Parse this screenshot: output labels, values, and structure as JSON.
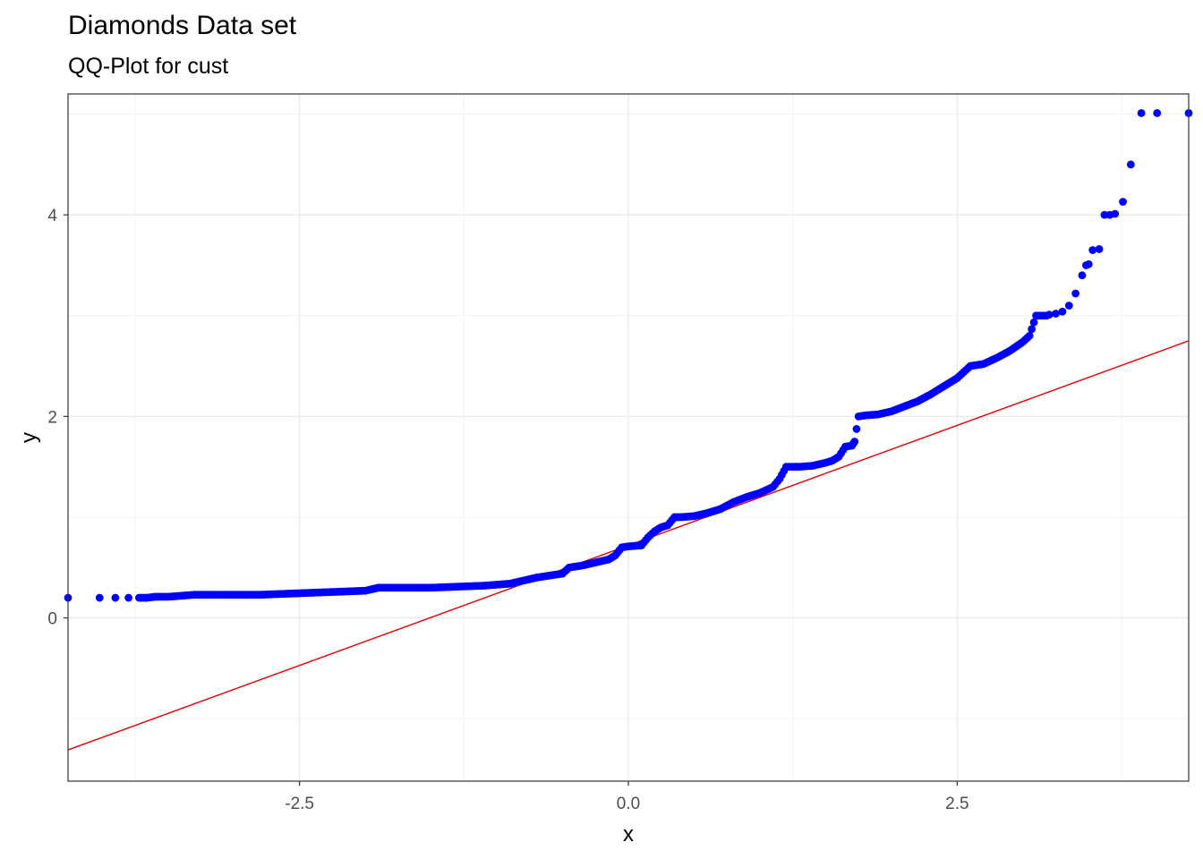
{
  "chart_data": {
    "type": "scatter",
    "title": "Diamonds Data set",
    "subtitle": "QQ-Plot for cust",
    "xlabel": "x",
    "ylabel": "y",
    "xlim": [
      -4.26,
      4.26
    ],
    "ylim": [
      -1.62,
      5.2
    ],
    "x_ticks": [
      -2.5,
      0,
      2.5
    ],
    "x_tick_labels": [
      "-2.5",
      "0.0",
      "2.5"
    ],
    "y_ticks": [
      0,
      2,
      4
    ],
    "y_tick_labels": [
      "0",
      "2",
      "4"
    ],
    "grid": true,
    "points_color": "#0000ff",
    "line_color": "#e00000",
    "reference_line": {
      "x": [
        -4.26,
        4.26
      ],
      "y": [
        -1.31,
        2.75
      ]
    },
    "points": {
      "x": [
        -4.26,
        -4.02,
        -3.9,
        -3.8,
        -3.72,
        -3.66,
        -3.6,
        -3.5,
        -3.4,
        -3.3,
        -3.2,
        -3.0,
        -2.8,
        -2.6,
        -2.4,
        -2.2,
        -2.0,
        -1.9,
        -1.7,
        -1.5,
        -1.3,
        -1.1,
        -0.9,
        -0.8,
        -0.7,
        -0.6,
        -0.5,
        -0.45,
        -0.35,
        -0.25,
        -0.15,
        -0.1,
        -0.05,
        0.0,
        0.1,
        0.15,
        0.2,
        0.25,
        0.3,
        0.35,
        0.4,
        0.5,
        0.6,
        0.7,
        0.8,
        0.9,
        1.0,
        1.1,
        1.15,
        1.2,
        1.3,
        1.4,
        1.5,
        1.55,
        1.6,
        1.65,
        1.7,
        1.72,
        1.75,
        1.8,
        1.9,
        2.0,
        2.1,
        2.2,
        2.3,
        2.4,
        2.5,
        2.6,
        2.7,
        2.8,
        2.9,
        3.0,
        3.05,
        3.1,
        3.15,
        3.18,
        3.2,
        3.25,
        3.3,
        3.35,
        3.4,
        3.45,
        3.48,
        3.5,
        3.53,
        3.58,
        3.62,
        3.66,
        3.7,
        3.76,
        3.82,
        3.9,
        4.02,
        4.26
      ],
      "y": [
        0.2,
        0.2,
        0.2,
        0.2,
        0.2,
        0.2,
        0.21,
        0.21,
        0.22,
        0.23,
        0.23,
        0.23,
        0.23,
        0.24,
        0.25,
        0.26,
        0.27,
        0.3,
        0.3,
        0.3,
        0.31,
        0.32,
        0.34,
        0.37,
        0.4,
        0.42,
        0.44,
        0.5,
        0.52,
        0.55,
        0.58,
        0.62,
        0.7,
        0.71,
        0.72,
        0.8,
        0.86,
        0.9,
        0.92,
        1.0,
        1.0,
        1.01,
        1.04,
        1.08,
        1.15,
        1.2,
        1.24,
        1.3,
        1.38,
        1.5,
        1.5,
        1.51,
        1.54,
        1.56,
        1.6,
        1.7,
        1.71,
        1.75,
        2.0,
        2.01,
        2.02,
        2.05,
        2.1,
        2.15,
        2.22,
        2.3,
        2.38,
        2.5,
        2.52,
        2.58,
        2.65,
        2.74,
        2.8,
        3.0,
        3.0,
        3.0,
        3.01,
        3.02,
        3.04,
        3.1,
        3.22,
        3.4,
        3.5,
        3.51,
        3.65,
        3.66,
        4.0,
        4.0,
        4.01,
        4.13,
        4.5,
        5.01,
        5.01,
        5.01
      ]
    }
  }
}
